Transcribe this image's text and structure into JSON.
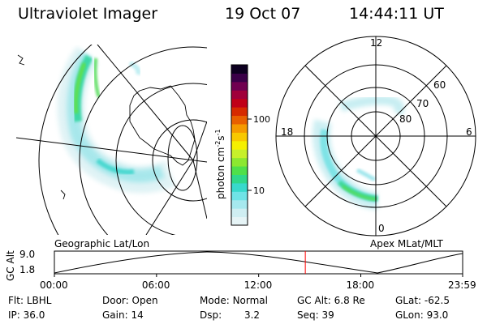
{
  "header": {
    "instrument": "Ultraviolet Imager",
    "date": "19 Oct 07",
    "time": "14:44:11 UT"
  },
  "colorbar": {
    "unit_label": "photon cm",
    "unit_sup1": "-2",
    "unit_mid": "s",
    "unit_sup2": "-1",
    "ticks": [
      {
        "label": "100",
        "value": 100
      },
      {
        "label": "10",
        "value": 10
      }
    ],
    "colors": [
      "#e6f4f6",
      "#cfeef2",
      "#a6e8ee",
      "#6fe3e6",
      "#38d9cc",
      "#2fd88a",
      "#4fe04a",
      "#8ce830",
      "#c7f02a",
      "#f5f000",
      "#f8c800",
      "#f59a00",
      "#e86000",
      "#d62a00",
      "#c00018",
      "#a0003a",
      "#700050",
      "#3a0048",
      "#0d0020"
    ]
  },
  "panels": {
    "left_label": "Geographic Lat/Lon",
    "right_label": "Apex MLat/MLT"
  },
  "polar": {
    "mlt_labels": {
      "top": "12",
      "left": "18",
      "right": "6",
      "bottom": "0"
    },
    "lat_labels": [
      "60",
      "70",
      "80"
    ]
  },
  "timeline": {
    "ylabel": "GC Alt",
    "yticks": [
      "9.0",
      "1.8"
    ],
    "xticks": [
      "00:00",
      "06:00",
      "12:00",
      "18:00",
      "23:59"
    ],
    "current_time_hours": 14.74
  },
  "status": {
    "row1": [
      {
        "key": "Flt:",
        "value": "LBHL"
      },
      {
        "key": "Door:",
        "value": "Open"
      },
      {
        "key": "Mode:",
        "value": "Normal"
      },
      {
        "key": "GC Alt:",
        "value": "6.8 Re"
      },
      {
        "key": "GLat:",
        "value": "-62.5"
      }
    ],
    "row2": [
      {
        "key": "IP:",
        "value": "36.0"
      },
      {
        "key": "Gain:",
        "value": "14"
      },
      {
        "key": "Dsp:",
        "value": "3.2"
      },
      {
        "key": "Seq:",
        "value": "39"
      },
      {
        "key": "GLon:",
        "value": "93.0"
      }
    ]
  }
}
